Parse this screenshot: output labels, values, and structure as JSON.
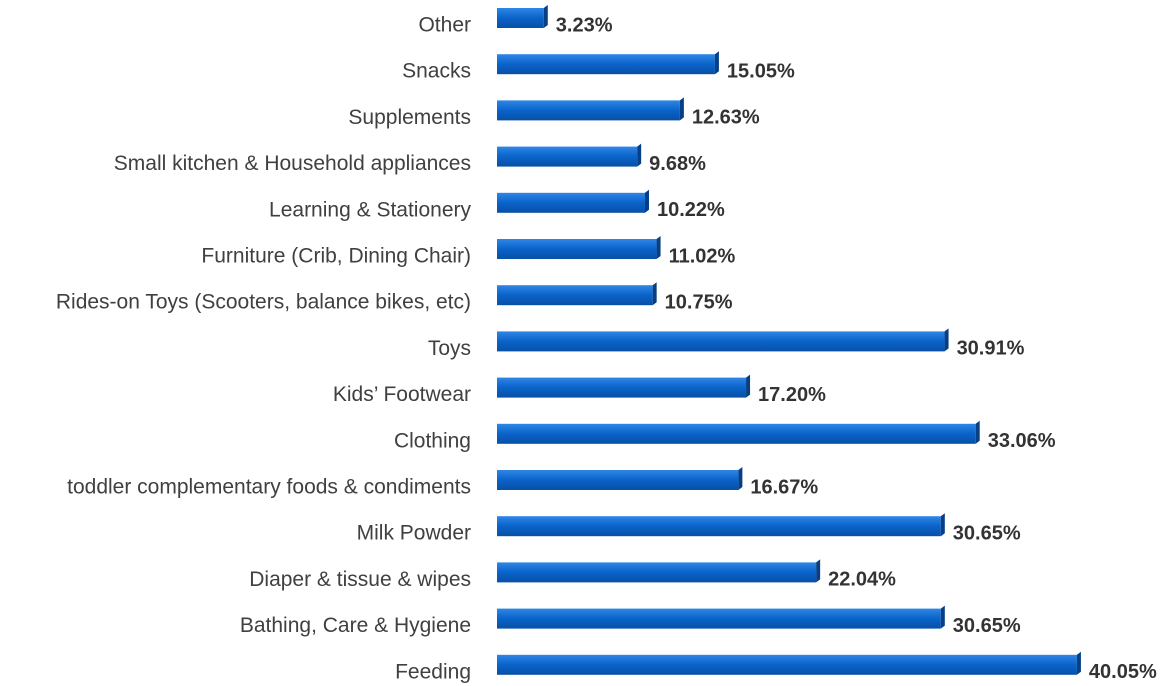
{
  "chart_data": {
    "type": "bar",
    "orientation": "horizontal",
    "color": "#0a63c9",
    "categories": [
      "Other",
      "Snacks",
      "Supplements",
      "Small kitchen & Household appliances",
      "Learning & Stationery",
      "Furniture (Crib, Dining Chair)",
      "Rides-on Toys (Scooters, balance bikes, etc)",
      "Toys",
      "Kids’ Footwear",
      "Clothing",
      "toddler complementary foods & condiments",
      "Milk Powder",
      "Diaper & tissue & wipes",
      "Bathing, Care & Hygiene",
      "Feeding"
    ],
    "values": [
      3.23,
      15.05,
      12.63,
      9.68,
      10.22,
      11.02,
      10.75,
      30.91,
      17.2,
      33.06,
      16.67,
      30.65,
      22.04,
      30.65,
      40.05
    ],
    "value_labels": [
      "3.23%",
      "15.05%",
      "12.63%",
      "9.68%",
      "10.22%",
      "11.02%",
      "10.75%",
      "30.91%",
      "17.20%",
      "33.06%",
      "16.67%",
      "30.65%",
      "22.04%",
      "30.65%",
      "40.05%"
    ]
  }
}
